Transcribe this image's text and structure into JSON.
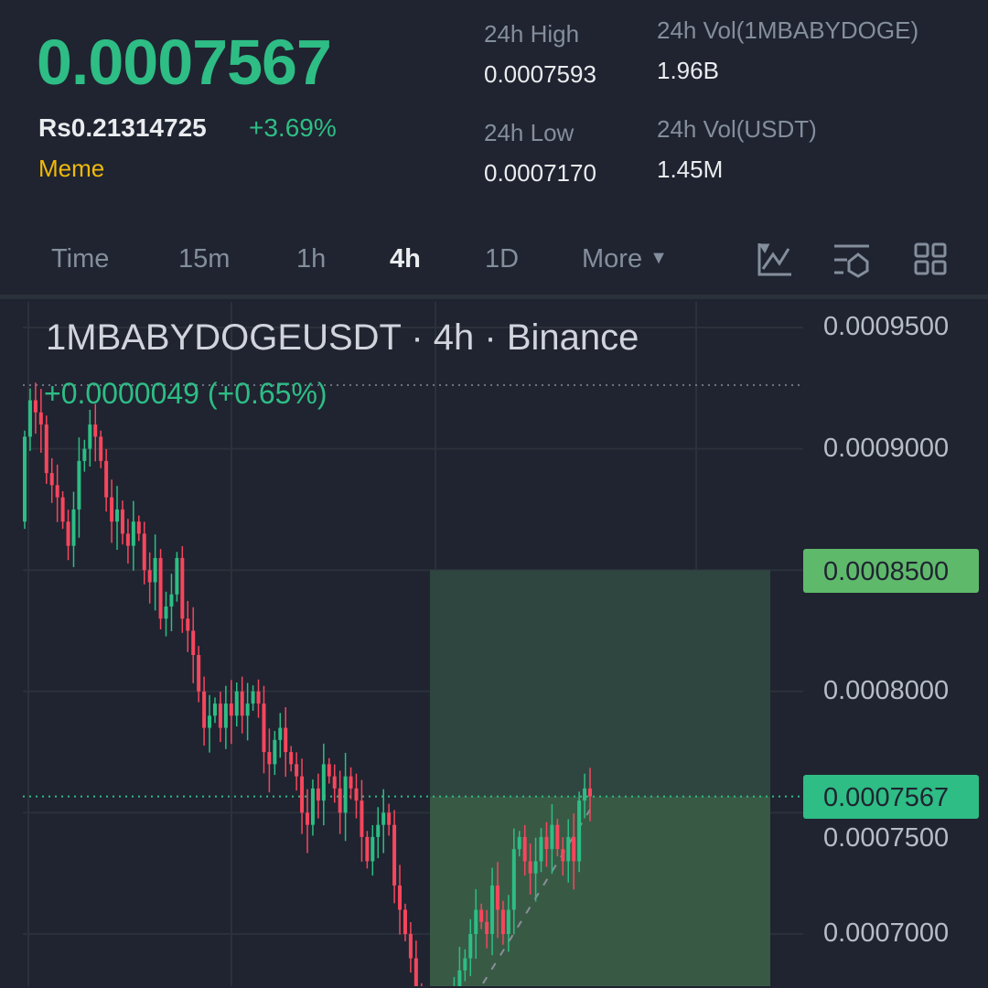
{
  "ticker": {
    "price": "0.0007567",
    "fiat_price": "Rs0.21314725",
    "change_pct": "+3.69%",
    "tag": "Meme"
  },
  "stats": {
    "high_label": "24h High",
    "high_value": "0.0007593",
    "low_label": "24h Low",
    "low_value": "0.0007170",
    "vol_base_label": "24h Vol(1MBABYDOGE)",
    "vol_base_value": "1.96B",
    "vol_quote_label": "24h Vol(USDT)",
    "vol_quote_value": "1.45M"
  },
  "intervals": [
    {
      "label": "Time"
    },
    {
      "label": "15m"
    },
    {
      "label": "1h"
    },
    {
      "label": "4h",
      "active": true
    },
    {
      "label": "1D"
    },
    {
      "label": "More"
    }
  ],
  "toolbar_icons": [
    "indicator-chart-icon",
    "settings-sliders-icon",
    "grid-layout-icon"
  ],
  "colors": {
    "up": "#2ebd85",
    "down": "#f6465d",
    "accent": "#f0b90b",
    "target": "#5fb96b"
  },
  "chart_data": {
    "type": "candlestick",
    "title": "1MBABYDOGEUSDT · 4h · Binance",
    "change_label": "+0.0000049 (+0.65%)",
    "ylim": [
      0.00066,
      0.000965
    ],
    "y_ticks": [
      "0.0009500",
      "0.0009000",
      "0.0008500",
      "0.0008000",
      "0.0007500",
      "0.0007000"
    ],
    "target_label": "0.0008500",
    "current_price_label": "0.0007567",
    "target_zone": {
      "low": 0.0007567,
      "high": 0.00085
    },
    "grid": true,
    "closes": [
      0.000905,
      0.00092,
      0.000915,
      0.00091,
      0.00089,
      0.000885,
      0.00088,
      0.00087,
      0.00086,
      0.000875,
      0.000895,
      0.0009,
      0.00091,
      0.000905,
      0.000895,
      0.00088,
      0.00087,
      0.000875,
      0.000865,
      0.00086,
      0.00087,
      0.000865,
      0.00085,
      0.000845,
      0.000855,
      0.00083,
      0.000835,
      0.00084,
      0.000855,
      0.00083,
      0.000825,
      0.000815,
      0.0008,
      0.000785,
      0.00079,
      0.000795,
      0.000785,
      0.000795,
      0.00079,
      0.0008,
      0.00079,
      0.000795,
      0.0008,
      0.000795,
      0.000775,
      0.00077,
      0.00078,
      0.000785,
      0.000775,
      0.00077,
      0.000765,
      0.00075,
      0.000745,
      0.00076,
      0.000755,
      0.00077,
      0.000765,
      0.00076,
      0.00075,
      0.000765,
      0.00076,
      0.000755,
      0.00074,
      0.00073,
      0.00074,
      0.000745,
      0.00075,
      0.000745,
      0.00072,
      0.00071,
      0.0007,
      0.00069,
      0.00067,
      0.00066,
      0.000655,
      0.00066,
      0.000665,
      0.00066,
      0.00067,
      0.000675,
      0.000685,
      0.00069,
      0.0007,
      0.00071,
      0.000705,
      0.0007,
      0.00072,
      0.00071,
      0.0007,
      0.00071,
      0.000735,
      0.00074,
      0.00073,
      0.000725,
      0.00073,
      0.00074,
      0.000735,
      0.000745,
      0.000735,
      0.00073,
      0.00074,
      0.00073,
      0.000755,
      0.00076,
      0.0007567
    ]
  }
}
